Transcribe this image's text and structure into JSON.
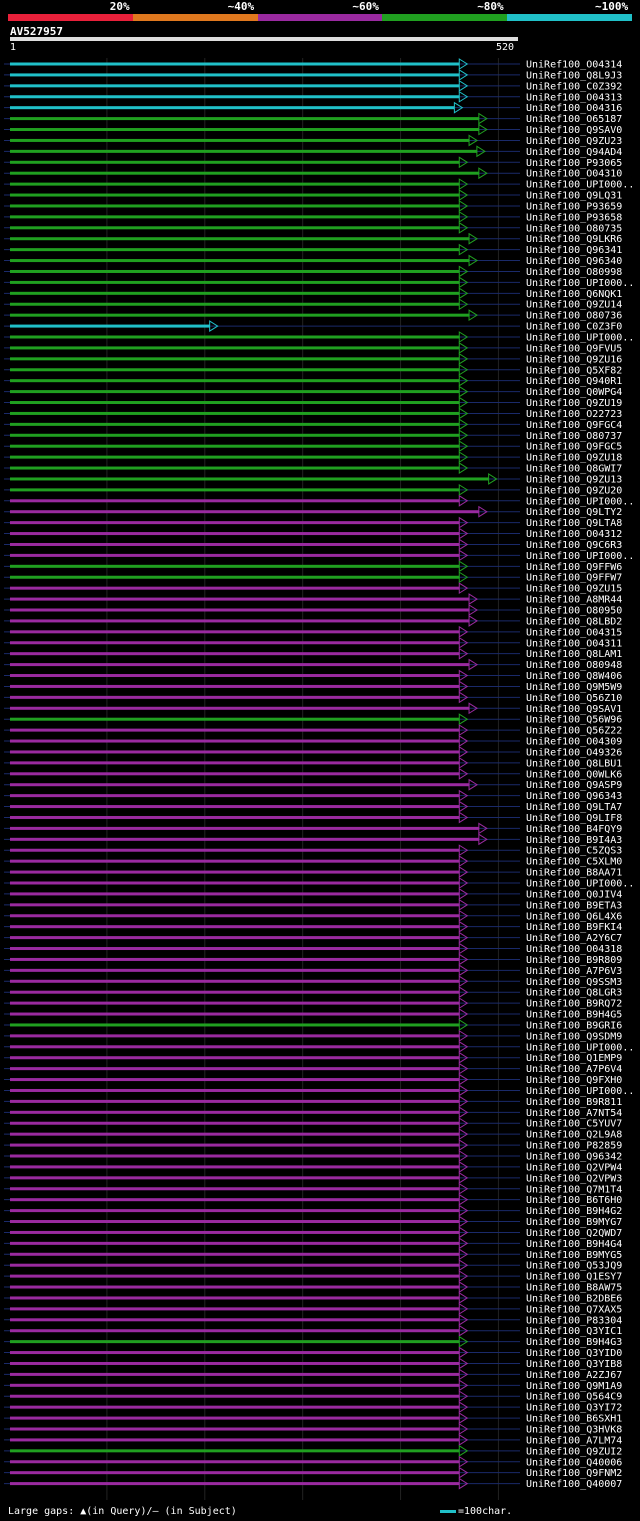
{
  "legend": {
    "labels": [
      "20%",
      "~40%",
      "~60%",
      "~80%",
      "~100%"
    ],
    "colors": [
      "#e8203a",
      "#e0781e",
      "#9a2aa0",
      "#20a020",
      "#20c0c8"
    ]
  },
  "query": {
    "name": "AV527957",
    "start_label": "1",
    "end_label": "520"
  },
  "footer": {
    "gap_text": "Large gaps: ▲(in Query)/– (in Subject)",
    "scale_text": "=100char."
  },
  "chart_data": {
    "type": "alignment-map",
    "query_length": 520,
    "identity_bins": [
      "20%",
      "~40%",
      "~60%",
      "~80%",
      "~100%"
    ],
    "hits": [
      {
        "name": "UniRef100_O04314",
        "bin": "~100%",
        "start": 1,
        "end": 460
      },
      {
        "name": "UniRef100_Q8L9J3",
        "bin": "~100%",
        "start": 1,
        "end": 460
      },
      {
        "name": "UniRef100_C0Z392",
        "bin": "~100%",
        "start": 1,
        "end": 460
      },
      {
        "name": "UniRef100_O04313",
        "bin": "~100%",
        "start": 1,
        "end": 460
      },
      {
        "name": "UniRef100_O04316",
        "bin": "~100%",
        "start": 1,
        "end": 455
      },
      {
        "name": "UniRef100_O65187",
        "bin": "~80%",
        "start": 1,
        "end": 480
      },
      {
        "name": "UniRef100_Q9SAV0",
        "bin": "~80%",
        "start": 1,
        "end": 480
      },
      {
        "name": "UniRef100_Q9ZU23",
        "bin": "~80%",
        "start": 1,
        "end": 470
      },
      {
        "name": "UniRef100_Q94AD4",
        "bin": "~80%",
        "start": 1,
        "end": 478
      },
      {
        "name": "UniRef100_P93065",
        "bin": "~80%",
        "start": 1,
        "end": 460
      },
      {
        "name": "UniRef100_O04310",
        "bin": "~80%",
        "start": 1,
        "end": 480
      },
      {
        "name": "UniRef100_UPI000..",
        "bin": "~80%",
        "start": 1,
        "end": 460
      },
      {
        "name": "UniRef100_Q9LQ31",
        "bin": "~80%",
        "start": 1,
        "end": 460
      },
      {
        "name": "UniRef100_P93659",
        "bin": "~80%",
        "start": 1,
        "end": 460
      },
      {
        "name": "UniRef100_P93658",
        "bin": "~80%",
        "start": 1,
        "end": 460
      },
      {
        "name": "UniRef100_O80735",
        "bin": "~80%",
        "start": 1,
        "end": 460
      },
      {
        "name": "UniRef100_Q9LKR6",
        "bin": "~80%",
        "start": 1,
        "end": 470
      },
      {
        "name": "UniRef100_Q96341",
        "bin": "~80%",
        "start": 1,
        "end": 460
      },
      {
        "name": "UniRef100_Q96340",
        "bin": "~80%",
        "start": 1,
        "end": 470
      },
      {
        "name": "UniRef100_O80998",
        "bin": "~80%",
        "start": 1,
        "end": 460
      },
      {
        "name": "UniRef100_UPI000..",
        "bin": "~80%",
        "start": 1,
        "end": 460
      },
      {
        "name": "UniRef100_Q6NQK1",
        "bin": "~80%",
        "start": 1,
        "end": 460
      },
      {
        "name": "UniRef100_Q9ZU14",
        "bin": "~80%",
        "start": 1,
        "end": 460
      },
      {
        "name": "UniRef100_O80736",
        "bin": "~80%",
        "start": 1,
        "end": 470
      },
      {
        "name": "UniRef100_C0Z3F0",
        "bin": "~100%",
        "start": 1,
        "end": 205
      },
      {
        "name": "UniRef100_UPI000..",
        "bin": "~80%",
        "start": 1,
        "end": 460
      },
      {
        "name": "UniRef100_Q9FVU5",
        "bin": "~80%",
        "start": 1,
        "end": 460
      },
      {
        "name": "UniRef100_Q9ZU16",
        "bin": "~80%",
        "start": 1,
        "end": 460
      },
      {
        "name": "UniRef100_Q5XF82",
        "bin": "~80%",
        "start": 1,
        "end": 460
      },
      {
        "name": "UniRef100_Q940R1",
        "bin": "~80%",
        "start": 1,
        "end": 460
      },
      {
        "name": "UniRef100_Q0WPG4",
        "bin": "~80%",
        "start": 1,
        "end": 460
      },
      {
        "name": "UniRef100_Q9ZU19",
        "bin": "~80%",
        "start": 1,
        "end": 460
      },
      {
        "name": "UniRef100_O22723",
        "bin": "~80%",
        "start": 1,
        "end": 460
      },
      {
        "name": "UniRef100_Q9FGC4",
        "bin": "~80%",
        "start": 1,
        "end": 460
      },
      {
        "name": "UniRef100_O80737",
        "bin": "~80%",
        "start": 1,
        "end": 460
      },
      {
        "name": "UniRef100_Q9FGC5",
        "bin": "~80%",
        "start": 1,
        "end": 460
      },
      {
        "name": "UniRef100_Q9ZU18",
        "bin": "~80%",
        "start": 1,
        "end": 460
      },
      {
        "name": "UniRef100_Q8GWI7",
        "bin": "~80%",
        "start": 1,
        "end": 460
      },
      {
        "name": "UniRef100_Q9ZU13",
        "bin": "~80%",
        "start": 1,
        "end": 490
      },
      {
        "name": "UniRef100_Q9ZU20",
        "bin": "~80%",
        "start": 1,
        "end": 460
      },
      {
        "name": "UniRef100_UPI000..",
        "bin": "~60%",
        "start": 1,
        "end": 460
      },
      {
        "name": "UniRef100_Q9LTY2",
        "bin": "~60%",
        "start": 1,
        "end": 480
      },
      {
        "name": "UniRef100_Q9LTA8",
        "bin": "~60%",
        "start": 1,
        "end": 460
      },
      {
        "name": "UniRef100_O04312",
        "bin": "~60%",
        "start": 1,
        "end": 460
      },
      {
        "name": "UniRef100_Q9C6R3",
        "bin": "~60%",
        "start": 1,
        "end": 460
      },
      {
        "name": "UniRef100_UPI000..",
        "bin": "~60%",
        "start": 1,
        "end": 460
      },
      {
        "name": "UniRef100_Q9FFW6",
        "bin": "~80%",
        "start": 1,
        "end": 460
      },
      {
        "name": "UniRef100_Q9FFW7",
        "bin": "~80%",
        "start": 1,
        "end": 460
      },
      {
        "name": "UniRef100_Q9ZU15",
        "bin": "~60%",
        "start": 1,
        "end": 460
      },
      {
        "name": "UniRef100_A8MR44",
        "bin": "~60%",
        "start": 1,
        "end": 470
      },
      {
        "name": "UniRef100_O80950",
        "bin": "~60%",
        "start": 1,
        "end": 470
      },
      {
        "name": "UniRef100_Q8LBD2",
        "bin": "~60%",
        "start": 1,
        "end": 470
      },
      {
        "name": "UniRef100_O04315",
        "bin": "~60%",
        "start": 1,
        "end": 460
      },
      {
        "name": "UniRef100_O04311",
        "bin": "~60%",
        "start": 1,
        "end": 460
      },
      {
        "name": "UniRef100_Q8LAM1",
        "bin": "~60%",
        "start": 1,
        "end": 460
      },
      {
        "name": "UniRef100_O80948",
        "bin": "~60%",
        "start": 1,
        "end": 470
      },
      {
        "name": "UniRef100_Q8W406",
        "bin": "~60%",
        "start": 1,
        "end": 460
      },
      {
        "name": "UniRef100_Q9M5W9",
        "bin": "~60%",
        "start": 1,
        "end": 460
      },
      {
        "name": "UniRef100_Q56Z10",
        "bin": "~60%",
        "start": 1,
        "end": 460
      },
      {
        "name": "UniRef100_Q9SAV1",
        "bin": "~60%",
        "start": 1,
        "end": 470
      },
      {
        "name": "UniRef100_Q56W96",
        "bin": "~80%",
        "start": 1,
        "end": 460
      },
      {
        "name": "UniRef100_Q56Z22",
        "bin": "~60%",
        "start": 1,
        "end": 460
      },
      {
        "name": "UniRef100_O04309",
        "bin": "~60%",
        "start": 1,
        "end": 460
      },
      {
        "name": "UniRef100_O49326",
        "bin": "~60%",
        "start": 1,
        "end": 460
      },
      {
        "name": "UniRef100_Q8LBU1",
        "bin": "~60%",
        "start": 1,
        "end": 460
      },
      {
        "name": "UniRef100_Q0WLK6",
        "bin": "~60%",
        "start": 1,
        "end": 460
      },
      {
        "name": "UniRef100_Q9ASP9",
        "bin": "~60%",
        "start": 1,
        "end": 470
      },
      {
        "name": "UniRef100_Q96343",
        "bin": "~60%",
        "start": 1,
        "end": 460
      },
      {
        "name": "UniRef100_Q9LTA7",
        "bin": "~60%",
        "start": 1,
        "end": 460
      },
      {
        "name": "UniRef100_Q9LIF8",
        "bin": "~60%",
        "start": 1,
        "end": 460
      },
      {
        "name": "UniRef100_B4FQY9",
        "bin": "~60%",
        "start": 1,
        "end": 480
      },
      {
        "name": "UniRef100_B9I4A3",
        "bin": "~60%",
        "start": 1,
        "end": 480
      },
      {
        "name": "UniRef100_C5ZQS3",
        "bin": "~60%",
        "start": 1,
        "end": 460
      },
      {
        "name": "UniRef100_C5XLM0",
        "bin": "~60%",
        "start": 1,
        "end": 460
      },
      {
        "name": "UniRef100_B8AA71",
        "bin": "~60%",
        "start": 1,
        "end": 460
      },
      {
        "name": "UniRef100_UPI000..",
        "bin": "~60%",
        "start": 1,
        "end": 460
      },
      {
        "name": "UniRef100_Q0JIV4",
        "bin": "~60%",
        "start": 1,
        "end": 460
      },
      {
        "name": "UniRef100_B9ETA3",
        "bin": "~60%",
        "start": 1,
        "end": 460
      },
      {
        "name": "UniRef100_Q6L4X6",
        "bin": "~60%",
        "start": 1,
        "end": 460
      },
      {
        "name": "UniRef100_B9FKI4",
        "bin": "~60%",
        "start": 1,
        "end": 460
      },
      {
        "name": "UniRef100_A2Y6C7",
        "bin": "~60%",
        "start": 1,
        "end": 460
      },
      {
        "name": "UniRef100_O04318",
        "bin": "~60%",
        "start": 1,
        "end": 460
      },
      {
        "name": "UniRef100_B9R809",
        "bin": "~60%",
        "start": 1,
        "end": 460
      },
      {
        "name": "UniRef100_A7P6V3",
        "bin": "~60%",
        "start": 1,
        "end": 460
      },
      {
        "name": "UniRef100_Q9SSM3",
        "bin": "~60%",
        "start": 1,
        "end": 460
      },
      {
        "name": "UniRef100_Q8LGR3",
        "bin": "~60%",
        "start": 1,
        "end": 460
      },
      {
        "name": "UniRef100_B9RQ72",
        "bin": "~60%",
        "start": 1,
        "end": 460
      },
      {
        "name": "UniRef100_B9H4G5",
        "bin": "~60%",
        "start": 1,
        "end": 460
      },
      {
        "name": "UniRef100_B9GRI6",
        "bin": "~80%",
        "start": 1,
        "end": 460
      },
      {
        "name": "UniRef100_Q9SDM9",
        "bin": "~60%",
        "start": 1,
        "end": 460
      },
      {
        "name": "UniRef100_UPI000..",
        "bin": "~60%",
        "start": 1,
        "end": 460
      },
      {
        "name": "UniRef100_Q1EMP9",
        "bin": "~60%",
        "start": 1,
        "end": 460
      },
      {
        "name": "UniRef100_A7P6V4",
        "bin": "~60%",
        "start": 1,
        "end": 460
      },
      {
        "name": "UniRef100_Q9FXH0",
        "bin": "~60%",
        "start": 1,
        "end": 460
      },
      {
        "name": "UniRef100_UPI000..",
        "bin": "~60%",
        "start": 1,
        "end": 460
      },
      {
        "name": "UniRef100_B9R811",
        "bin": "~60%",
        "start": 1,
        "end": 460
      },
      {
        "name": "UniRef100_A7NT54",
        "bin": "~60%",
        "start": 1,
        "end": 460
      },
      {
        "name": "UniRef100_C5YUV7",
        "bin": "~60%",
        "start": 1,
        "end": 460
      },
      {
        "name": "UniRef100_Q2L9A8",
        "bin": "~60%",
        "start": 1,
        "end": 460
      },
      {
        "name": "UniRef100_P82859",
        "bin": "~60%",
        "start": 1,
        "end": 460
      },
      {
        "name": "UniRef100_Q96342",
        "bin": "~60%",
        "start": 1,
        "end": 460
      },
      {
        "name": "UniRef100_Q2VPW4",
        "bin": "~60%",
        "start": 1,
        "end": 460
      },
      {
        "name": "UniRef100_Q2VPW3",
        "bin": "~60%",
        "start": 1,
        "end": 460
      },
      {
        "name": "UniRef100_Q7M1T4",
        "bin": "~60%",
        "start": 1,
        "end": 460
      },
      {
        "name": "UniRef100_B6T6H0",
        "bin": "~60%",
        "start": 1,
        "end": 460
      },
      {
        "name": "UniRef100_B9H4G2",
        "bin": "~60%",
        "start": 1,
        "end": 460
      },
      {
        "name": "UniRef100_B9MYG7",
        "bin": "~60%",
        "start": 1,
        "end": 460
      },
      {
        "name": "UniRef100_Q2QWD7",
        "bin": "~60%",
        "start": 1,
        "end": 460
      },
      {
        "name": "UniRef100_B9H4G4",
        "bin": "~60%",
        "start": 1,
        "end": 460
      },
      {
        "name": "UniRef100_B9MYG5",
        "bin": "~60%",
        "start": 1,
        "end": 460
      },
      {
        "name": "UniRef100_Q53JQ9",
        "bin": "~60%",
        "start": 1,
        "end": 460
      },
      {
        "name": "UniRef100_Q1ESY7",
        "bin": "~60%",
        "start": 1,
        "end": 460
      },
      {
        "name": "UniRef100_B8AW75",
        "bin": "~60%",
        "start": 1,
        "end": 460
      },
      {
        "name": "UniRef100_B2DBE6",
        "bin": "~60%",
        "start": 1,
        "end": 460
      },
      {
        "name": "UniRef100_Q7XAX5",
        "bin": "~60%",
        "start": 1,
        "end": 460
      },
      {
        "name": "UniRef100_P83304",
        "bin": "~60%",
        "start": 1,
        "end": 460
      },
      {
        "name": "UniRef100_Q3YIC1",
        "bin": "~60%",
        "start": 1,
        "end": 460
      },
      {
        "name": "UniRef100_B9H4G3",
        "bin": "~80%",
        "start": 1,
        "end": 460
      },
      {
        "name": "UniRef100_Q3YID0",
        "bin": "~60%",
        "start": 1,
        "end": 460
      },
      {
        "name": "UniRef100_Q3YIB8",
        "bin": "~60%",
        "start": 1,
        "end": 460
      },
      {
        "name": "UniRef100_A2ZJ67",
        "bin": "~60%",
        "start": 1,
        "end": 460
      },
      {
        "name": "UniRef100_Q9M1A9",
        "bin": "~60%",
        "start": 1,
        "end": 460
      },
      {
        "name": "UniRef100_Q564C9",
        "bin": "~60%",
        "start": 1,
        "end": 460
      },
      {
        "name": "UniRef100_Q3YI72",
        "bin": "~60%",
        "start": 1,
        "end": 460
      },
      {
        "name": "UniRef100_B6SXH1",
        "bin": "~60%",
        "start": 1,
        "end": 460
      },
      {
        "name": "UniRef100_Q3HVK8",
        "bin": "~60%",
        "start": 1,
        "end": 460
      },
      {
        "name": "UniRef100_A7LM74",
        "bin": "~60%",
        "start": 1,
        "end": 460
      },
      {
        "name": "UniRef100_Q9ZUI2",
        "bin": "~80%",
        "start": 1,
        "end": 460
      },
      {
        "name": "UniRef100_Q40006",
        "bin": "~60%",
        "start": 1,
        "end": 460
      },
      {
        "name": "UniRef100_Q9FNM2",
        "bin": "~60%",
        "start": 1,
        "end": 460
      },
      {
        "name": "UniRef100_Q40007",
        "bin": "~60%",
        "start": 1,
        "end": 460
      }
    ]
  }
}
